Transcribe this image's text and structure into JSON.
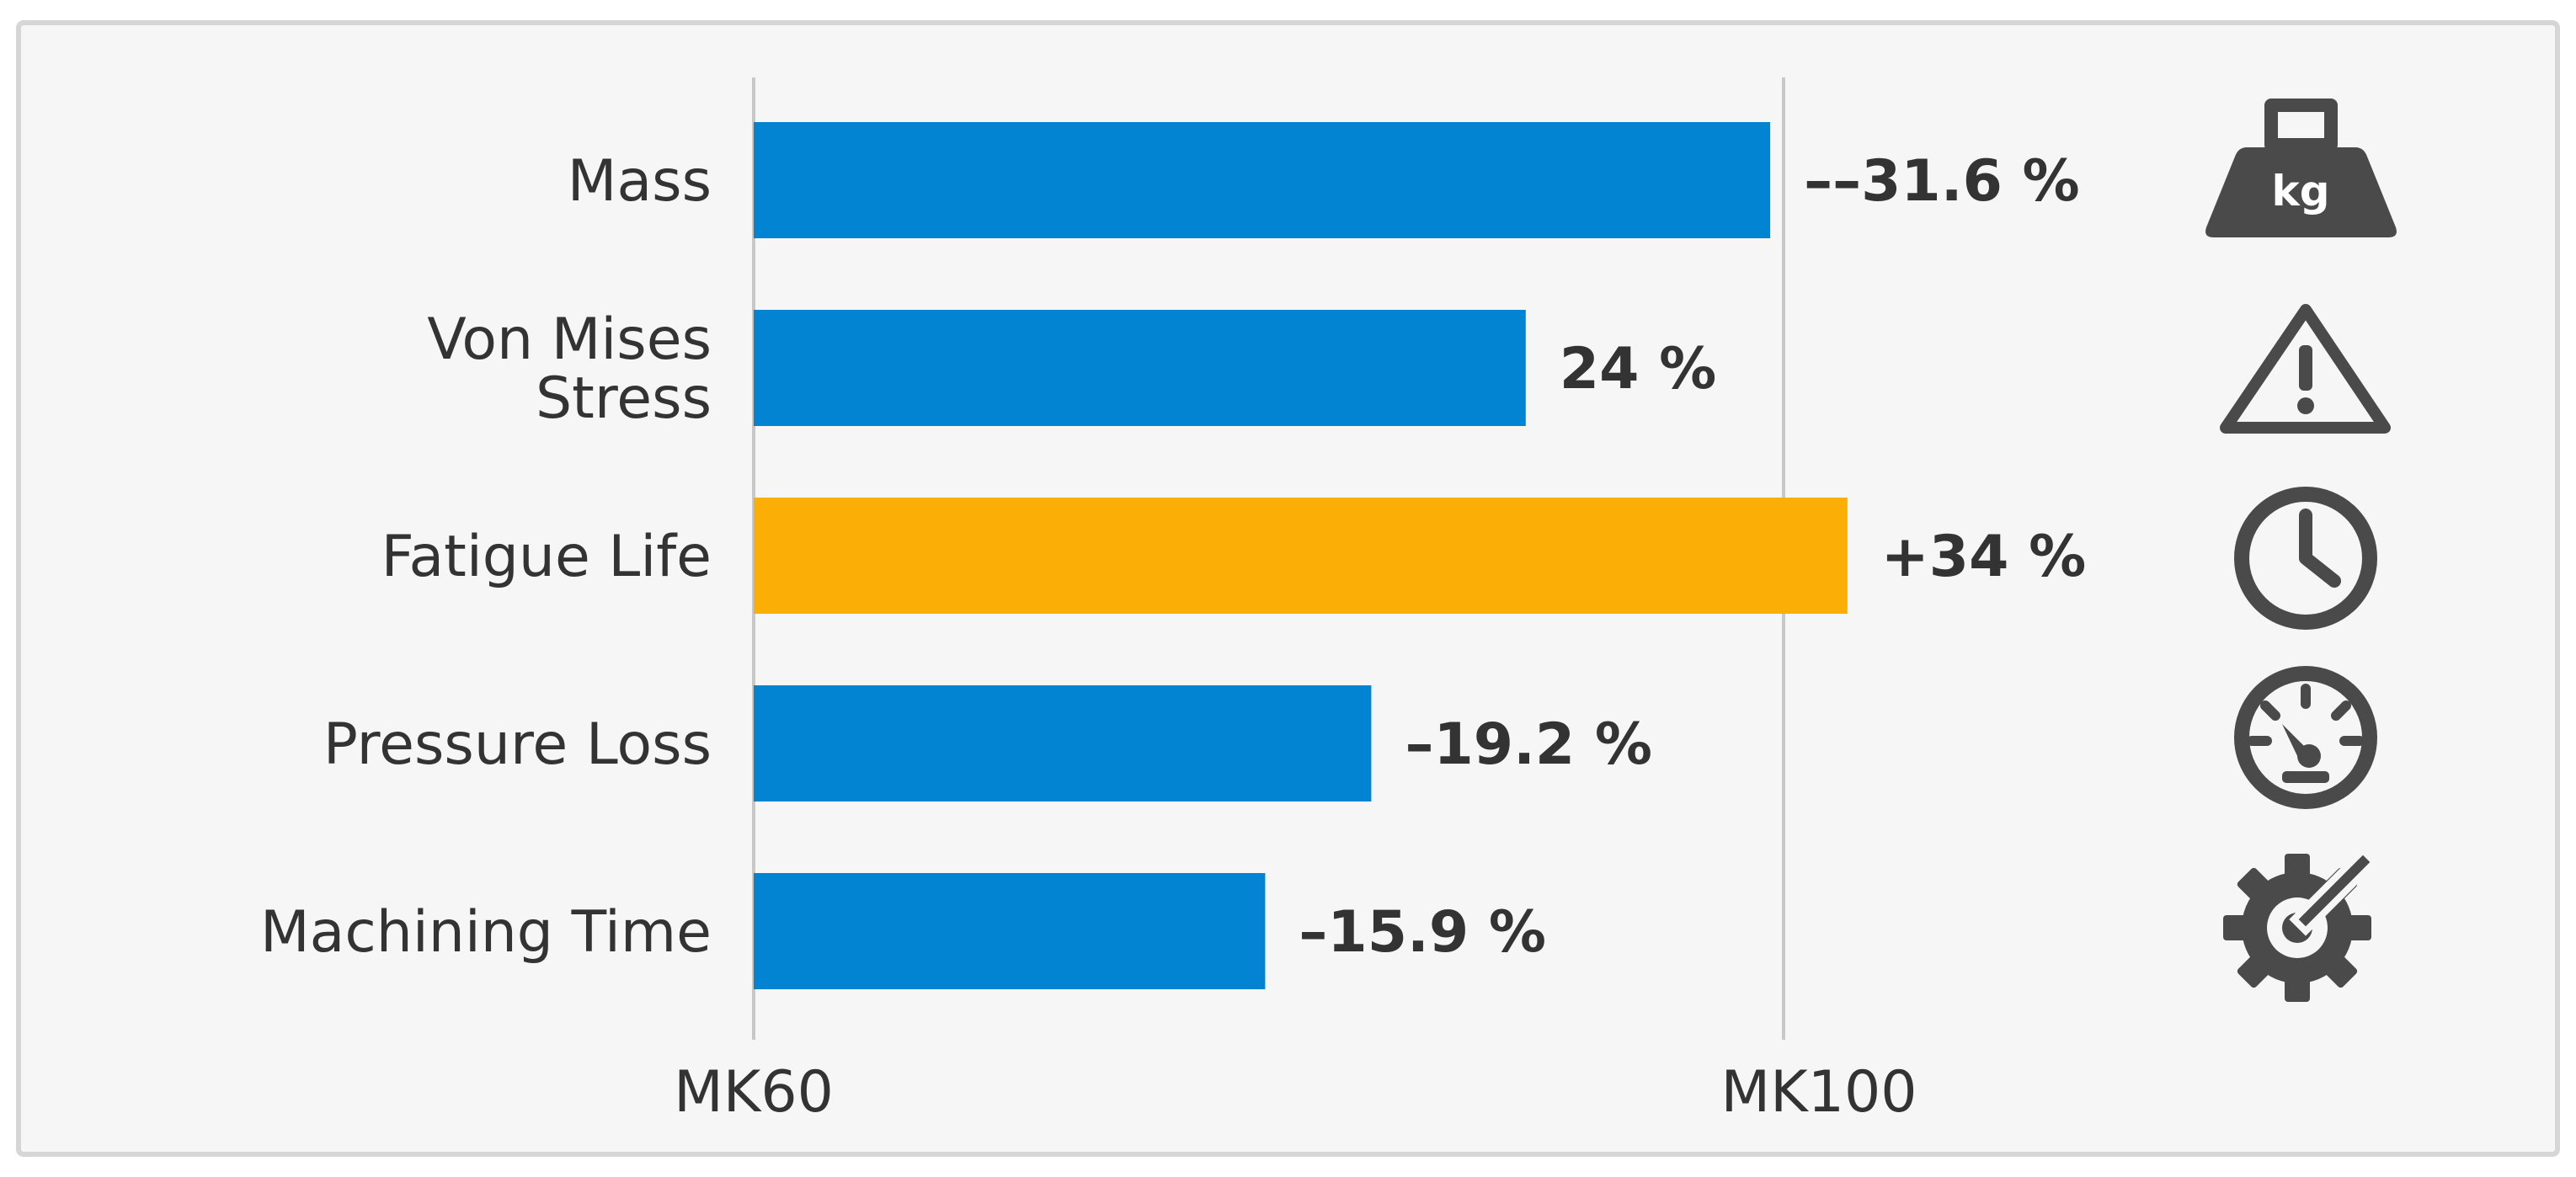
{
  "chart_data": {
    "type": "bar",
    "orientation": "horizontal",
    "x_axis_labels": [
      "MK60",
      "MK100"
    ],
    "categories": [
      "Mass",
      "Von Mises\nStress",
      "Fatigue Life",
      "Pressure Loss",
      "Machining Time"
    ],
    "values": [
      -31.6,
      24,
      34,
      -19.2,
      -15.9
    ],
    "value_labels": [
      "––31.6 %",
      "24 %",
      "+34 %",
      "–19.2 %",
      "–15.9 %"
    ],
    "highlight_index": 2,
    "icons": [
      "kg-weight-icon",
      "warning-icon",
      "clock-icon",
      "gauge-icon",
      "gear-speed-icon"
    ],
    "icon_text": [
      "kg"
    ],
    "colors": {
      "bar": "#0384d2",
      "highlight": "#fbae06",
      "text": "#333333",
      "grid": "#c8c8c8",
      "icon": "#4a4a4a",
      "background": "#f6f6f6",
      "border": "#d6d6d6"
    },
    "grid": true,
    "legend": "none"
  }
}
